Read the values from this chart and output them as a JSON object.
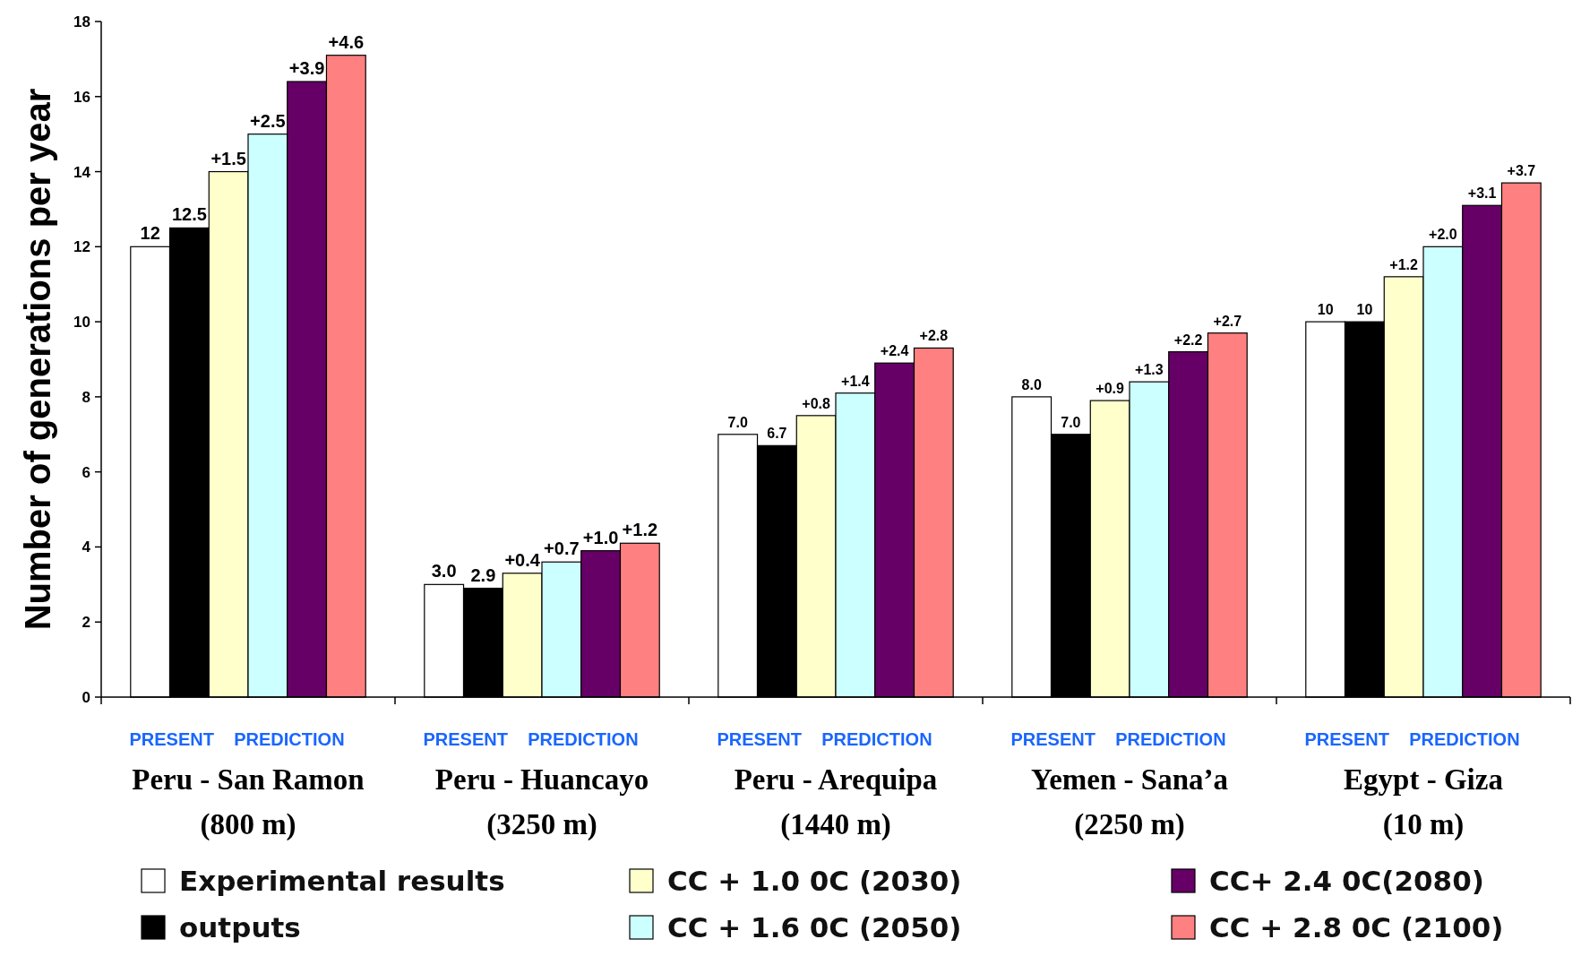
{
  "chart_data": {
    "type": "bar",
    "ylabel": "Number of generations per year",
    "categories": [
      "Peru - San Ramon\n(800 m)",
      "Peru - Huancayo\n(3250 m)",
      "Peru - Arequipa\n(1440 m)",
      "Yemen - Sana’a\n(2250 m)",
      "Egypt - Giza\n(10 m)"
    ],
    "series": [
      {
        "name": "Experimental results",
        "color": "#ffffff",
        "values": [
          12,
          3.0,
          7.0,
          8.0,
          10
        ],
        "value_labels": [
          "12",
          "3.0",
          "7.0",
          "8.0",
          "10"
        ]
      },
      {
        "name": "outputs",
        "color": "#000000",
        "values": [
          12.5,
          2.9,
          6.7,
          7.0,
          10
        ],
        "value_labels": [
          "12.5",
          "2.9",
          "6.7",
          "7.0",
          "10"
        ]
      },
      {
        "name": "CC + 1.0 0C (2030)",
        "color": "#ffffcc",
        "values": [
          14,
          3.3,
          7.5,
          7.9,
          11.2
        ]
      },
      {
        "name": "CC + 1.6 0C (2050)",
        "color": "#ccffff",
        "values": [
          15,
          3.6,
          8.1,
          8.4,
          12
        ]
      },
      {
        "name": "CC+ 2.4 0C(2080)",
        "color": "#660066",
        "values": [
          16.4,
          3.9,
          8.9,
          9.2,
          13.1
        ]
      },
      {
        "name": "CC + 2.8 0C (2100)",
        "color": "#ff8080",
        "values": [
          17.1,
          4.1,
          9.3,
          9.7,
          13.7
        ]
      }
    ],
    "ylim": [
      0,
      18
    ],
    "yticks": [
      0,
      2,
      4,
      6,
      8,
      10,
      12,
      14,
      16,
      18
    ],
    "grid": false,
    "legend": "bottom",
    "annotations": [
      "PRESENT",
      "PREDICTION",
      "PRESENT",
      "PREDICTION",
      "PRESENT",
      "PREDICTION",
      "PRESENT",
      "PREDICTION",
      "PRESENT",
      "PREDICTION",
      "+1.5",
      "+0.4",
      "+0.8",
      "+0.9",
      "+1.2",
      "+2.5",
      "+0.7",
      "+1.4",
      "+1.3",
      "+2.0",
      "+3.9",
      "+1.0",
      "+2.4",
      "+2.2",
      "+3.1",
      "+4.6",
      "+1.2",
      "+2.8",
      "+2.7",
      "+3.7"
    ]
  }
}
